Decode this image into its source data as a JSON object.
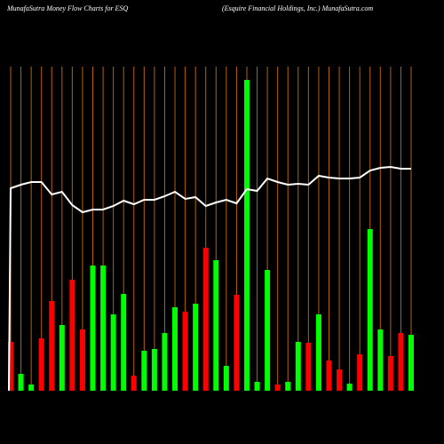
{
  "chart_data": {
    "type": "bar",
    "title": "MunafaSutra  Money Flow  Charts for ESQ",
    "subtitle": "(Esquire   Financial Holdings,  Inc.) MunafaSutra.com",
    "ylim": [
      0,
      440
    ],
    "series": [
      {
        "name": "money flow",
        "type": "bar",
        "values": [
          55,
          19,
          7,
          59,
          101,
          74,
          125,
          69,
          141,
          141,
          86,
          109,
          17,
          45,
          47,
          65,
          94,
          89,
          98,
          161,
          147,
          28,
          108,
          350,
          10,
          136,
          7,
          10,
          55,
          54,
          86,
          34,
          24,
          8,
          41,
          182,
          69,
          39,
          65,
          63
        ],
        "colors": [
          "#ff0000",
          "#00ff00",
          "#00ff00",
          "#ff0000",
          "#ff0000",
          "#00ff00",
          "#ff0000",
          "#ff0000",
          "#00ff00",
          "#00ff00",
          "#00ff00",
          "#00ff00",
          "#ff0000",
          "#00ff00",
          "#00ff00",
          "#00ff00",
          "#00ff00",
          "#ff0000",
          "#00ff00",
          "#ff0000",
          "#00ff00",
          "#00ff00",
          "#ff0000",
          "#00ff00",
          "#00ff00",
          "#00ff00",
          "#ff0000",
          "#00ff00",
          "#00ff00",
          "#ff0000",
          "#00ff00",
          "#ff0000",
          "#ff0000",
          "#00ff00",
          "#ff0000",
          "#00ff00",
          "#00ff00",
          "#ff0000",
          "#ff0000",
          "#00ff00"
        ]
      },
      {
        "name": "price",
        "type": "line",
        "color": "#ffffff",
        "values": [
          228,
          232,
          235,
          235,
          221,
          224,
          209,
          201,
          204,
          204,
          208,
          214,
          210,
          215,
          215,
          219,
          224,
          216,
          218,
          208,
          212,
          215,
          211,
          227,
          225,
          239,
          235,
          232,
          233,
          232,
          242,
          240,
          239,
          239,
          240,
          248,
          251,
          252,
          250,
          250
        ]
      }
    ],
    "grid_color": "#b8600a"
  }
}
